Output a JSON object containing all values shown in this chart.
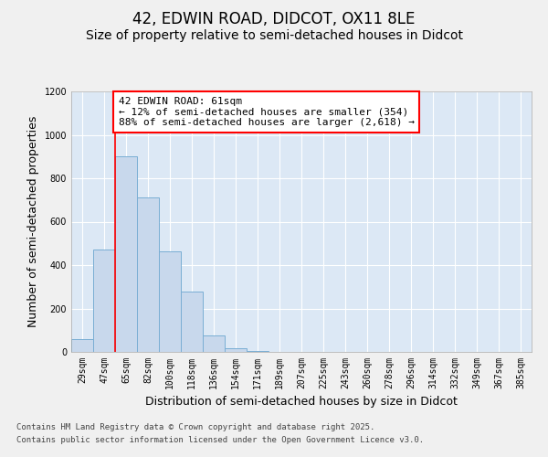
{
  "title": "42, EDWIN ROAD, DIDCOT, OX11 8LE",
  "subtitle": "Size of property relative to semi-detached houses in Didcot",
  "xlabel": "Distribution of semi-detached houses by size in Didcot",
  "ylabel": "Number of semi-detached properties",
  "categories": [
    "29sqm",
    "47sqm",
    "65sqm",
    "82sqm",
    "100sqm",
    "118sqm",
    "136sqm",
    "154sqm",
    "171sqm",
    "189sqm",
    "207sqm",
    "225sqm",
    "243sqm",
    "260sqm",
    "278sqm",
    "296sqm",
    "314sqm",
    "332sqm",
    "349sqm",
    "367sqm",
    "385sqm"
  ],
  "values": [
    60,
    470,
    900,
    710,
    465,
    280,
    75,
    15,
    5,
    0,
    0,
    0,
    0,
    0,
    0,
    0,
    0,
    0,
    0,
    0,
    0
  ],
  "bar_color": "#c8d8ec",
  "bar_edgecolor": "#7aaed4",
  "vline_x": 1.5,
  "annotation_text": "42 EDWIN ROAD: 61sqm\n← 12% of semi-detached houses are smaller (354)\n88% of semi-detached houses are larger (2,618) →",
  "ylim": [
    0,
    1200
  ],
  "yticks": [
    0,
    200,
    400,
    600,
    800,
    1000,
    1200
  ],
  "plot_bg_color": "#dce8f5",
  "fig_bg_color": "#f0f0f0",
  "grid_color": "#ffffff",
  "footer_line1": "Contains HM Land Registry data © Crown copyright and database right 2025.",
  "footer_line2": "Contains public sector information licensed under the Open Government Licence v3.0.",
  "title_fontsize": 12,
  "subtitle_fontsize": 10,
  "axis_label_fontsize": 9,
  "tick_fontsize": 7,
  "footer_fontsize": 6.5,
  "annot_fontsize": 8
}
